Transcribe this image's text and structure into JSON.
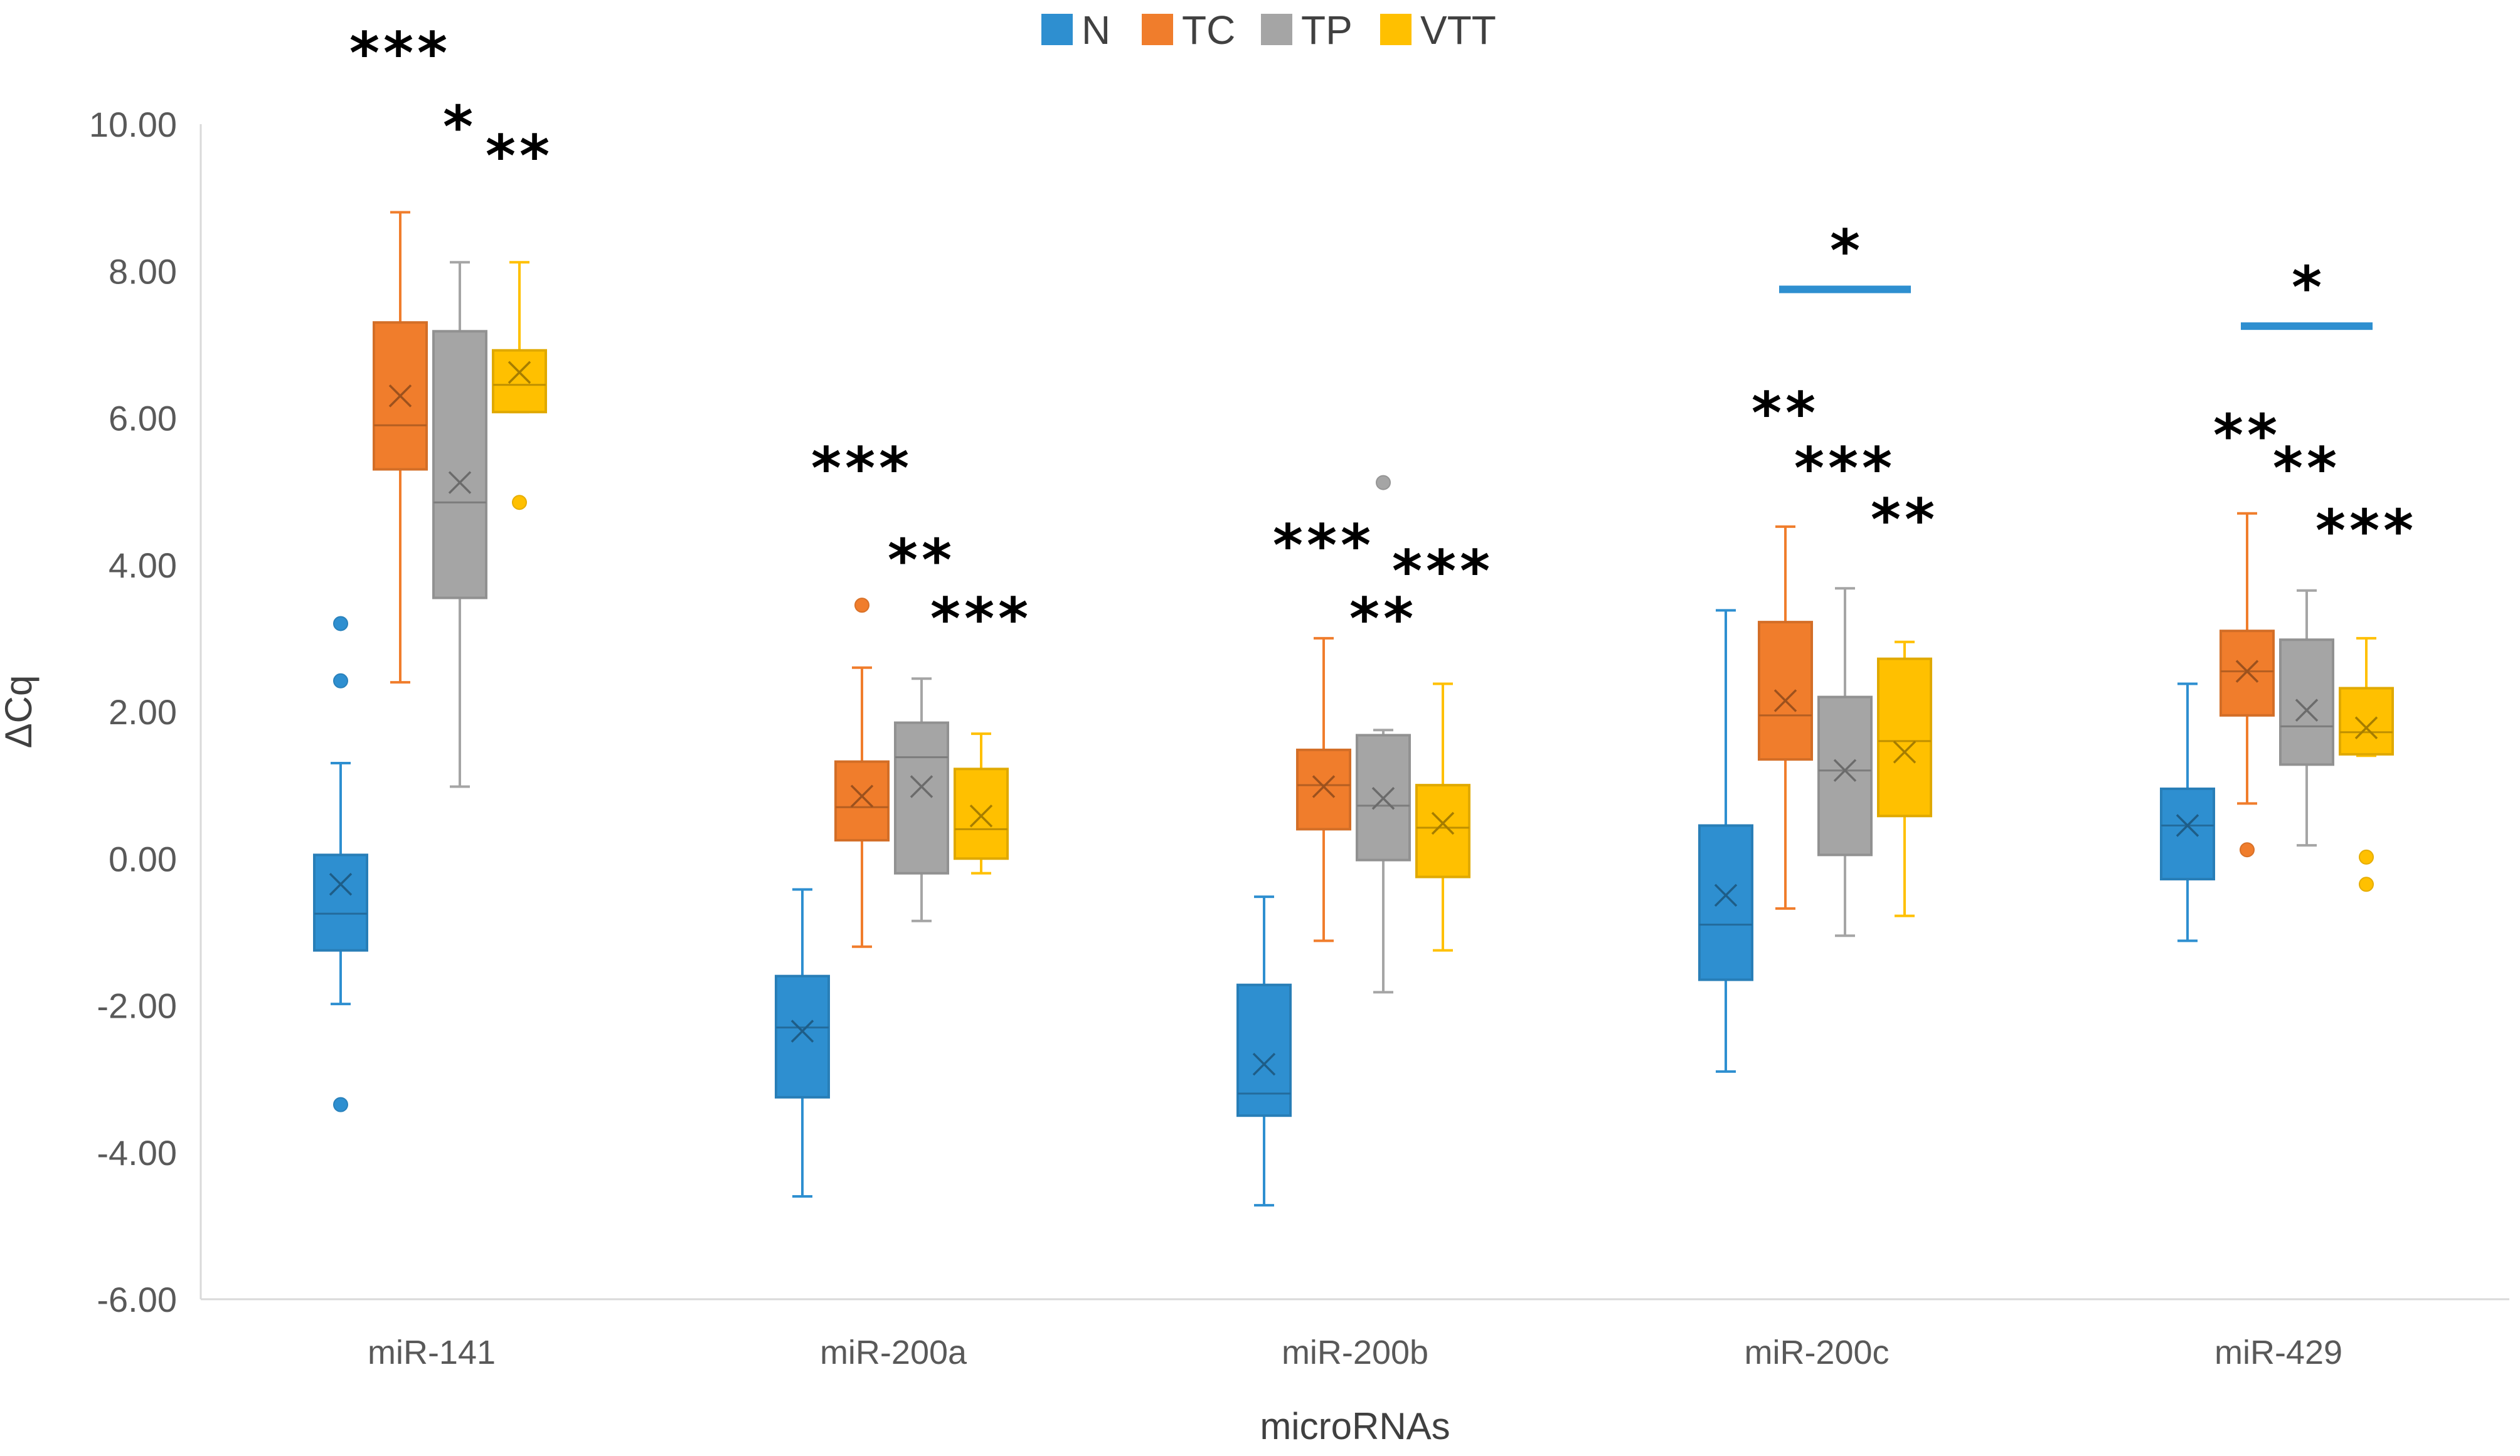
{
  "chart_data": {
    "type": "box",
    "xlabel": "microRNAs",
    "ylabel": "ΔCq",
    "ylim": [
      -6,
      10
    ],
    "y_ticks": [
      -6,
      -4,
      -2,
      0,
      2,
      4,
      6,
      8,
      10
    ],
    "y_tick_labels": [
      "-6.00",
      "-4.00",
      "-2.00",
      "0.00",
      "2.00",
      "4.00",
      "6.00",
      "8.00",
      "10.00"
    ],
    "grid": false,
    "legend_position": "top-center",
    "categories": [
      "miR-141",
      "miR-200a",
      "miR-200b",
      "miR-200c",
      "miR-429"
    ],
    "series": [
      {
        "name": "N",
        "color": "#2E8FD0",
        "boxes": [
          {
            "whisker_low": -1.98,
            "q1": -1.25,
            "median": -0.75,
            "q3": 0.05,
            "whisker_high": 1.3,
            "mean": -0.35,
            "outliers": [
              3.2,
              2.42,
              -3.35
            ]
          },
          {
            "whisker_low": -4.6,
            "q1": -3.25,
            "median": -2.3,
            "q3": -1.6,
            "whisker_high": -0.42,
            "mean": -2.35,
            "outliers": []
          },
          {
            "whisker_low": -4.72,
            "q1": -3.5,
            "median": -3.2,
            "q3": -1.72,
            "whisker_high": -0.52,
            "mean": -2.8,
            "outliers": []
          },
          {
            "whisker_low": -2.9,
            "q1": -1.65,
            "median": -0.9,
            "q3": 0.45,
            "whisker_high": 3.38,
            "mean": -0.5,
            "outliers": []
          },
          {
            "whisker_low": -1.12,
            "q1": -0.28,
            "median": 0.45,
            "q3": 0.95,
            "whisker_high": 2.38,
            "mean": 0.45,
            "outliers": []
          }
        ]
      },
      {
        "name": "TC",
        "color": "#F07D2C",
        "boxes": [
          {
            "whisker_low": 2.4,
            "q1": 5.3,
            "median": 5.9,
            "q3": 7.3,
            "whisker_high": 8.8,
            "mean": 6.3,
            "outliers": []
          },
          {
            "whisker_low": -1.2,
            "q1": 0.25,
            "median": 0.7,
            "q3": 1.32,
            "whisker_high": 2.6,
            "mean": 0.85,
            "outliers": [
              3.45
            ]
          },
          {
            "whisker_low": -1.12,
            "q1": 0.4,
            "median": 1.0,
            "q3": 1.48,
            "whisker_high": 3.0,
            "mean": 0.98,
            "outliers": []
          },
          {
            "whisker_low": -0.68,
            "q1": 1.35,
            "median": 1.95,
            "q3": 3.22,
            "whisker_high": 4.52,
            "mean": 2.15,
            "outliers": []
          },
          {
            "whisker_low": 0.75,
            "q1": 1.95,
            "median": 2.55,
            "q3": 3.1,
            "whisker_high": 4.7,
            "mean": 2.55,
            "outliers": [
              0.12
            ]
          }
        ]
      },
      {
        "name": "TP",
        "color": "#A5A5A5",
        "boxes": [
          {
            "whisker_low": 0.98,
            "q1": 3.55,
            "median": 4.85,
            "q3": 7.18,
            "whisker_high": 8.12,
            "mean": 5.12,
            "outliers": []
          },
          {
            "whisker_low": -0.85,
            "q1": -0.2,
            "median": 1.38,
            "q3": 1.85,
            "whisker_high": 2.45,
            "mean": 0.98,
            "outliers": []
          },
          {
            "whisker_low": -1.82,
            "q1": -0.02,
            "median": 0.72,
            "q3": 1.68,
            "whisker_high": 1.75,
            "mean": 0.82,
            "outliers": [
              5.12
            ]
          },
          {
            "whisker_low": -1.05,
            "q1": 0.05,
            "median": 1.2,
            "q3": 2.2,
            "whisker_high": 3.68,
            "mean": 1.2,
            "outliers": []
          },
          {
            "whisker_low": 0.18,
            "q1": 1.28,
            "median": 1.8,
            "q3": 2.98,
            "whisker_high": 3.65,
            "mean": 2.02,
            "outliers": []
          }
        ]
      },
      {
        "name": "VTT",
        "color": "#FFC000",
        "boxes": [
          {
            "whisker_low": 6.08,
            "q1": 6.08,
            "median": 6.45,
            "q3": 6.92,
            "whisker_high": 8.12,
            "mean": 6.62,
            "outliers": [
              4.85
            ]
          },
          {
            "whisker_low": -0.2,
            "q1": 0.0,
            "median": 0.4,
            "q3": 1.22,
            "whisker_high": 1.7,
            "mean": 0.58,
            "outliers": []
          },
          {
            "whisker_low": -1.25,
            "q1": -0.25,
            "median": 0.42,
            "q3": 1.0,
            "whisker_high": 2.38,
            "mean": 0.48,
            "outliers": []
          },
          {
            "whisker_low": -0.78,
            "q1": 0.58,
            "median": 1.6,
            "q3": 2.72,
            "whisker_high": 2.95,
            "mean": 1.45,
            "outliers": []
          },
          {
            "whisker_low": 1.4,
            "q1": 1.42,
            "median": 1.72,
            "q3": 2.32,
            "whisker_high": 3.0,
            "mean": 1.78,
            "outliers": [
              0.02,
              -0.35
            ]
          }
        ]
      }
    ],
    "annotations": [
      {
        "category": 0,
        "series": 1,
        "text": "***",
        "y": 10.95
      },
      {
        "category": 0,
        "series": 2,
        "text": "*",
        "y": 9.95
      },
      {
        "category": 0,
        "series": 3,
        "text": "**",
        "y": 9.55
      },
      {
        "category": 1,
        "series": 1,
        "text": "***",
        "y": 5.3
      },
      {
        "category": 1,
        "series": 2,
        "text": "**",
        "y": 4.05
      },
      {
        "category": 1,
        "series": 3,
        "text": "***",
        "y": 3.25
      },
      {
        "category": 2,
        "series": 1,
        "text": "***",
        "y": 4.25
      },
      {
        "category": 2,
        "series": 2,
        "text": "**",
        "y": 3.25
      },
      {
        "category": 2,
        "series": 3,
        "text": "***",
        "y": 3.9
      },
      {
        "category": 3,
        "series": 1,
        "text": "**",
        "y": 6.05
      },
      {
        "category": 3,
        "series": 2,
        "text": "***",
        "y": 5.3
      },
      {
        "category": 3,
        "series": 3,
        "text": "**",
        "y": 4.6
      },
      {
        "category": 4,
        "series": 1,
        "text": "**",
        "y": 5.75
      },
      {
        "category": 4,
        "series": 2,
        "text": "**",
        "y": 5.3
      },
      {
        "category": 4,
        "series": 3,
        "text": "***",
        "y": 4.45
      }
    ],
    "brackets": [
      {
        "category": 3,
        "from_series": 1,
        "to_series": 3,
        "y": 7.75,
        "text": "*",
        "color": "#2E8FD0"
      },
      {
        "category": 4,
        "from_series": 1,
        "to_series": 3,
        "y": 7.25,
        "text": "*",
        "color": "#2E8FD0"
      }
    ]
  }
}
